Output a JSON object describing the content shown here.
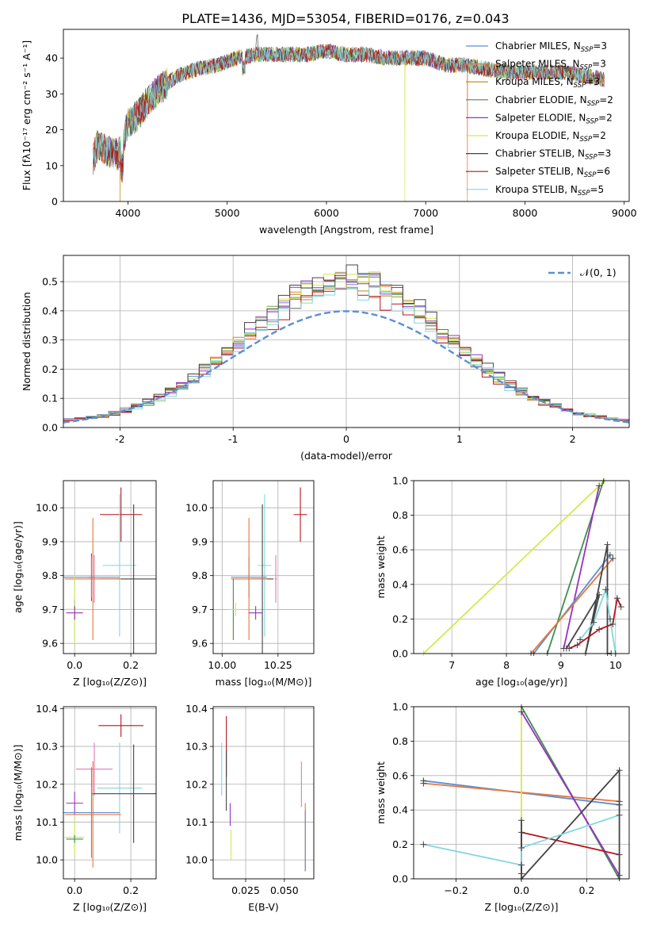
{
  "figure": {
    "title": "PLATE=1436, MJD=53054, FIBERID=0176, z=0.043"
  },
  "colors": {
    "chabrier_miles": "#5b8fd6",
    "salpeter_miles": "#e8773a",
    "kroupa_miles": "#b8860b",
    "chabrier_elodie": "#3f8f4f",
    "salpeter_elodie": "#9b30c0",
    "kroupa_elodie": "#d6e84a",
    "chabrier_stelib": "#444444",
    "salpeter_stelib": "#b8141c",
    "kroupa_stelib": "#80d8e0",
    "pink": "#e07ab8",
    "lime": "#c8e85a",
    "grid": "#b0b0b0",
    "gauss": "#5b8fd6"
  },
  "chart_data": [
    {
      "id": "spectrum",
      "type": "line",
      "title": "PLATE=1436, MJD=53054, FIBERID=0176, z=0.043",
      "xlabel": "wavelength [Angstrom, rest frame]",
      "ylabel": "Flux [fλ10⁻¹⁷ erg cm⁻² s⁻¹ A⁻¹]",
      "xlim": [
        3350,
        9050
      ],
      "ylim": [
        0,
        48
      ],
      "xticks": [
        4000,
        5000,
        6000,
        7000,
        8000,
        9000
      ],
      "yticks": [
        0,
        10,
        20,
        30,
        40
      ],
      "legend": "top-right",
      "continuum": {
        "x": [
          3650,
          3700,
          3800,
          3900,
          3950,
          4000,
          4100,
          4200,
          4300,
          4400,
          4500,
          4700,
          4900,
          5100,
          5300,
          5500,
          5800,
          6000,
          6200,
          6400,
          6600,
          6800,
          7000,
          7200,
          7400,
          7600,
          7800,
          8000,
          8200,
          8400,
          8600,
          8800
        ],
        "y": [
          12,
          16,
          14,
          13,
          16,
          22,
          24,
          28,
          31,
          33,
          35,
          37,
          38,
          40,
          41,
          41,
          41,
          42,
          41,
          41,
          40,
          40,
          40,
          38,
          38,
          37,
          36,
          36,
          36,
          36,
          35,
          34
        ]
      },
      "drops": [
        {
          "series": "Kroupa MILES",
          "x": 3920
        },
        {
          "series": "Kroupa ELODIE",
          "x": 6790
        },
        {
          "series": "Salpeter MILES",
          "x": 7420
        }
      ],
      "series": [
        {
          "key": "chabrier_miles",
          "label": "Chabrier MILES, N",
          "n": "3"
        },
        {
          "key": "salpeter_miles",
          "label": "Salpeter MILES, N",
          "n": "3"
        },
        {
          "key": "kroupa_miles",
          "label": "Kroupa MILES, N",
          "n": "3"
        },
        {
          "key": "chabrier_elodie",
          "label": "Chabrier ELODIE, N",
          "n": "2"
        },
        {
          "key": "salpeter_elodie",
          "label": "Salpeter ELODIE, N",
          "n": "2"
        },
        {
          "key": "kroupa_elodie",
          "label": "Kroupa ELODIE, N",
          "n": "2"
        },
        {
          "key": "chabrier_stelib",
          "label": "Chabrier STELIB, N",
          "n": "3"
        },
        {
          "key": "salpeter_stelib",
          "label": "Salpeter STELIB, N",
          "n": "6"
        },
        {
          "key": "kroupa_stelib",
          "label": "Kroupa STELIB, N",
          "n": "5"
        }
      ]
    },
    {
      "id": "residuals",
      "type": "line",
      "xlabel": "(data-model)/error",
      "ylabel": "Normed distribution",
      "xlim": [
        -2.5,
        2.5
      ],
      "ylim": [
        0,
        0.59
      ],
      "xticks": [
        -2,
        -1,
        0,
        1,
        2
      ],
      "yticks": [
        0.0,
        0.1,
        0.2,
        0.3,
        0.4,
        0.5
      ],
      "bin_width": 0.1,
      "legend": "top-right",
      "gaussian_label": "𝒩(0, 1)",
      "series": [
        {
          "key": "chabrier_miles",
          "offset": 0.011
        },
        {
          "key": "salpeter_miles",
          "offset": 0.003
        },
        {
          "key": "kroupa_miles",
          "offset": -0.005
        },
        {
          "key": "chabrier_elodie",
          "offset": 0.014
        },
        {
          "key": "salpeter_elodie",
          "offset": 0.027
        },
        {
          "key": "kroupa_elodie",
          "offset": 0.035
        },
        {
          "key": "chabrier_stelib",
          "offset": 0.045
        },
        {
          "key": "salpeter_stelib",
          "offset": -0.035
        },
        {
          "key": "kroupa_stelib",
          "offset": -0.025
        }
      ]
    },
    {
      "id": "age_vs_Z",
      "type": "scatter",
      "xlabel": "Z [log₁₀(Z/Z⊙)]",
      "ylabel": "age  [log₁₀(age/yr)]",
      "xlim": [
        -0.04,
        0.29
      ],
      "ylim": [
        9.57,
        10.08
      ],
      "xticks": [
        0.0,
        0.2
      ],
      "xtick_labels": [
        "0.0",
        "0.2"
      ],
      "yticks": [
        9.6,
        9.7,
        9.8,
        9.9,
        10.0
      ],
      "yerr_caps": "none",
      "points": [
        {
          "key": "salpeter_stelib",
          "x": 0.165,
          "xerr": 0.075,
          "y": 9.98,
          "yerr": 0.08
        },
        {
          "key": "kroupa_stelib",
          "x": 0.16,
          "xerr": 0.06,
          "y": 9.83,
          "yerr": 0.21
        },
        {
          "key": "chabrier_stelib",
          "x": 0.21,
          "xerr": 0.12,
          "y": 9.79,
          "yerr": 0.22
        },
        {
          "key": "salpeter_elodie",
          "x": 0.06,
          "xerr": 0.01,
          "y": 9.795,
          "yerr": 0.07
        },
        {
          "key": "pink",
          "x": 0.07,
          "xerr": 0.005,
          "y": 9.79,
          "yerr": 0.07
        },
        {
          "key": "chabrier_miles",
          "x": 0.06,
          "xerr": 0.1,
          "y": 9.795,
          "yerr": 0.06
        },
        {
          "key": "salpeter_miles",
          "x": 0.065,
          "xerr": 0.1,
          "y": 9.79,
          "yerr": 0.18
        },
        {
          "key": "chabrier_elodie",
          "x": 0.0,
          "xerr": 0.03,
          "y": 9.7,
          "yerr": 0.03
        },
        {
          "key": "lime",
          "x": 0.0,
          "xerr": 0.03,
          "y": 9.7,
          "yerr": 0.1
        },
        {
          "key": "salpeter_elodie",
          "x": 0.0,
          "xerr": 0.03,
          "y": 9.69,
          "yerr": 0.02
        }
      ]
    },
    {
      "id": "age_vs_mass",
      "type": "scatter",
      "xlabel": "mass [log₁₀(M/M⊙)]",
      "xlim": [
        9.96,
        10.41
      ],
      "ylim": [
        9.57,
        10.08
      ],
      "xticks": [
        10.0,
        10.25
      ],
      "xtick_labels": [
        "10.00",
        "10.25"
      ],
      "yticks": [
        9.6,
        9.7,
        9.8,
        9.9,
        10.0
      ],
      "points": [
        {
          "key": "salpeter_stelib",
          "x": 10.35,
          "xerr": 0.03,
          "y": 9.98,
          "yerr": 0.08
        },
        {
          "key": "kroupa_stelib",
          "x": 10.19,
          "xerr": 0.03,
          "y": 9.83,
          "yerr": 0.21
        },
        {
          "key": "chabrier_stelib",
          "x": 10.18,
          "xerr": 0.05,
          "y": 9.79,
          "yerr": 0.22
        },
        {
          "key": "chabrier_miles",
          "x": 10.12,
          "xerr": 0.08,
          "y": 9.795,
          "yerr": 0.06
        },
        {
          "key": "salpeter_miles",
          "x": 10.12,
          "xerr": 0.08,
          "y": 9.79,
          "yerr": 0.18
        },
        {
          "key": "pink",
          "x": 10.24,
          "xerr": 0.005,
          "y": 9.79,
          "yerr": 0.07
        },
        {
          "key": "salpeter_elodie",
          "x": 10.15,
          "xerr": 0.03,
          "y": 9.69,
          "yerr": 0.02
        },
        {
          "key": "chabrier_elodie",
          "x": 10.05,
          "xerr": 0.005,
          "y": 9.7,
          "yerr": 0.09
        },
        {
          "key": "lime",
          "x": 10.06,
          "xerr": 0.03,
          "y": 9.7,
          "yerr": 0.02
        }
      ]
    },
    {
      "id": "weight_vs_age",
      "type": "line",
      "xlabel": "age  [log₁₀(age/yr)]",
      "ylabel": "mass weight",
      "xlim": [
        6.3,
        10.25
      ],
      "ylim": [
        0,
        1.0
      ],
      "xticks": [
        7,
        8,
        9,
        10
      ],
      "yticks": [
        0.0,
        0.2,
        0.4,
        0.6,
        0.8,
        1.0
      ],
      "series": [
        {
          "key": "kroupa_elodie",
          "x": [
            6.48,
            9.8
          ],
          "y": [
            0.0,
            1.0
          ]
        },
        {
          "key": "chabrier_elodie",
          "x": [
            8.75,
            9.78
          ],
          "y": [
            0.0,
            1.0
          ]
        },
        {
          "key": "salpeter_elodie",
          "x": [
            9.05,
            9.7
          ],
          "y": [
            0.03,
            0.97
          ]
        },
        {
          "key": "chabrier_miles",
          "x": [
            8.5,
            9.9
          ],
          "y": [
            0.0,
            0.57
          ]
        },
        {
          "key": "salpeter_miles",
          "x": [
            8.45,
            9.95
          ],
          "y": [
            0.0,
            0.55
          ]
        },
        {
          "key": "chabrier_stelib",
          "x": [
            9.1,
            9.7,
            9.45,
            9.85,
            9.85,
            9.92
          ],
          "y": [
            0.03,
            0.34,
            0.0,
            0.63,
            0.0,
            0.0
          ]
        },
        {
          "key": "kroupa_stelib",
          "x": [
            9.35,
            9.6,
            9.82,
            9.9,
            10.0
          ],
          "y": [
            0.08,
            0.18,
            0.37,
            0.2,
            0.0
          ]
        },
        {
          "key": "salpeter_stelib",
          "x": [
            9.15,
            9.3,
            9.7,
            9.95,
            10.03,
            10.1
          ],
          "y": [
            0.03,
            0.05,
            0.14,
            0.17,
            0.32,
            0.27
          ]
        }
      ]
    },
    {
      "id": "mass_vs_Z",
      "type": "scatter",
      "xlabel": "Z [log₁₀(Z/Z⊙)]",
      "ylabel": "mass [log₁₀(M/M⊙)]",
      "xlim": [
        -0.04,
        0.29
      ],
      "ylim": [
        9.95,
        10.405
      ],
      "xticks": [
        0.0,
        0.2
      ],
      "xtick_labels": [
        "0.0",
        "0.2"
      ],
      "yticks": [
        10.0,
        10.1,
        10.2,
        10.3,
        10.4
      ],
      "points": [
        {
          "key": "salpeter_stelib",
          "x": 0.165,
          "xerr": 0.08,
          "y": 10.355,
          "yerr": 0.03
        },
        {
          "key": "pink",
          "x": 0.07,
          "xerr": 0.065,
          "y": 10.24,
          "yerr": 0.07
        },
        {
          "key": "kroupa_stelib",
          "x": 0.16,
          "xerr": 0.08,
          "y": 10.19,
          "yerr": 0.12
        },
        {
          "key": "chabrier_stelib",
          "x": 0.21,
          "xerr": 0.15,
          "y": 10.175,
          "yerr": 0.13
        },
        {
          "key": "salpeter_elodie",
          "x": 0.0,
          "xerr": 0.03,
          "y": 10.15,
          "yerr": 0.03
        },
        {
          "key": "chabrier_miles",
          "x": 0.06,
          "xerr": 0.1,
          "y": 10.125,
          "yerr": 0.12
        },
        {
          "key": "salpeter_miles",
          "x": 0.065,
          "xerr": 0.1,
          "y": 10.12,
          "yerr": 0.14
        },
        {
          "key": "lime",
          "x": 0.0,
          "xerr": 0.035,
          "y": 10.06,
          "yerr": 0.05
        },
        {
          "key": "chabrier_elodie",
          "x": 0.0,
          "xerr": 0.03,
          "y": 10.055,
          "yerr": 0.01
        }
      ]
    },
    {
      "id": "mass_vs_ebv",
      "type": "scatter",
      "xlabel": "E(B-V)",
      "xlim": [
        0.004,
        0.069
      ],
      "ylim": [
        9.95,
        10.405
      ],
      "xticks": [
        0.025,
        0.05
      ],
      "xtick_labels": [
        "0.025",
        "0.050"
      ],
      "yticks": [
        10.0,
        10.1,
        10.2,
        10.3,
        10.4
      ],
      "points": [
        {
          "key": "kroupa_stelib",
          "x": 0.0095,
          "y": 10.24,
          "yerr": 0.07
        },
        {
          "key": "salpeter_stelib",
          "x": 0.0125,
          "y": 10.3,
          "yerr": 0.08
        },
        {
          "key": "chabrier_stelib",
          "x": 0.0125,
          "y": 10.21,
          "yerr": 0.08
        },
        {
          "key": "salpeter_elodie",
          "x": 0.015,
          "y": 10.12,
          "yerr": 0.03
        },
        {
          "key": "lime",
          "x": 0.0155,
          "y": 10.04,
          "yerr": 0.04
        },
        {
          "key": "pink",
          "x": 0.061,
          "y": 10.2,
          "yerr": 0.06
        },
        {
          "key": "salpeter_miles",
          "x": 0.0635,
          "y": 10.06,
          "yerr": 0.09
        },
        {
          "key": "chabrier_miles",
          "x": 0.0635,
          "y": 10.05,
          "yerr": 0.08
        }
      ]
    },
    {
      "id": "weight_vs_Z",
      "type": "line",
      "xlabel": "Z [log₁₀(Z/Z⊙)]",
      "ylabel": "mass weight",
      "xlim": [
        -0.33,
        0.33
      ],
      "ylim": [
        0,
        1.0
      ],
      "xticks": [
        -0.2,
        0.0,
        0.2
      ],
      "xtick_labels": [
        "−0.2",
        "0.0",
        "0.2"
      ],
      "yticks": [
        0.0,
        0.2,
        0.4,
        0.6,
        0.8,
        1.0
      ],
      "series": [
        {
          "key": "chabrier_miles",
          "x": [
            -0.3,
            0.3
          ],
          "y": [
            0.57,
            0.43
          ]
        },
        {
          "key": "salpeter_miles",
          "x": [
            -0.3,
            0.3
          ],
          "y": [
            0.555,
            0.45
          ]
        },
        {
          "key": "kroupa_elodie",
          "x": [
            0.0,
            0.0
          ],
          "y": [
            0.0,
            1.0
          ]
        },
        {
          "key": "chabrier_elodie",
          "x": [
            0.0,
            0.3
          ],
          "y": [
            1.0,
            0.0
          ]
        },
        {
          "key": "salpeter_elodie",
          "x": [
            0.0,
            0.3
          ],
          "y": [
            0.97,
            0.02
          ]
        },
        {
          "key": "salpeter_stelib",
          "x": [
            0.0,
            0.0,
            0.3
          ],
          "y": [
            0.03,
            0.27,
            0.14
          ]
        },
        {
          "key": "chabrier_stelib",
          "x": [
            0.0,
            0.0,
            0.3,
            0.3
          ],
          "y": [
            0.34,
            0.0,
            0.63,
            0.0
          ]
        },
        {
          "key": "kroupa_stelib",
          "x": [
            -0.3,
            0.0,
            0.0,
            0.3
          ],
          "y": [
            0.2,
            0.08,
            0.18,
            0.37
          ]
        }
      ]
    }
  ]
}
